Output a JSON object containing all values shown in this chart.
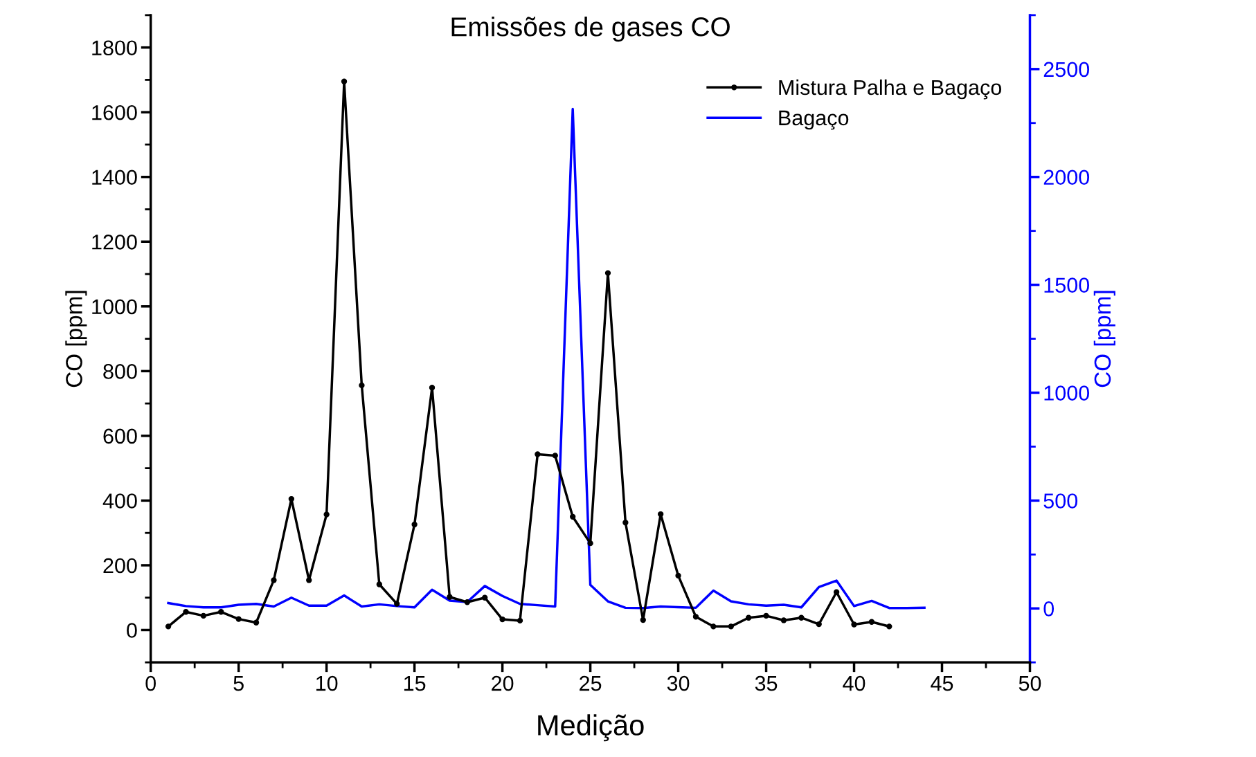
{
  "chart_data": {
    "type": "line",
    "title": "Emissões de gases CO",
    "xlabel": "Medição",
    "ylabel": "CO [ppm]",
    "y2label": "CO [ppm]",
    "x": [
      1,
      2,
      3,
      4,
      5,
      6,
      7,
      8,
      9,
      10,
      11,
      12,
      13,
      14,
      15,
      16,
      17,
      18,
      19,
      20,
      21,
      22,
      23,
      24,
      25,
      26,
      27,
      28,
      29,
      30,
      31,
      32,
      33,
      34,
      35,
      36,
      37,
      38,
      39,
      40,
      41,
      42,
      43,
      44
    ],
    "xlim": [
      0,
      50
    ],
    "xticks": [
      0,
      5,
      10,
      15,
      20,
      25,
      30,
      35,
      40,
      45,
      50
    ],
    "ylim": [
      -100,
      1900
    ],
    "yticks": [
      0,
      200,
      400,
      600,
      800,
      1000,
      1200,
      1400,
      1600,
      1800
    ],
    "y2lim": [
      -250,
      2750
    ],
    "y2ticks": [
      0,
      500,
      1000,
      1500,
      2000,
      2500
    ],
    "legend": "top right",
    "grid": false,
    "series": [
      {
        "name": "Mistura Palha e Bagaço",
        "color": "#000000",
        "marker": "circle",
        "line_style": "solid",
        "values": [
          11,
          56,
          44,
          56,
          34,
          23,
          154,
          405,
          154,
          357,
          1695,
          756,
          141,
          81,
          326,
          749,
          102,
          86,
          100,
          33,
          29,
          543,
          539,
          350,
          268,
          1103,
          332,
          31,
          358,
          168,
          41,
          11,
          11,
          38,
          44,
          30,
          38,
          18,
          117,
          17,
          25,
          11,
          null,
          null
        ]
      },
      {
        "name": "Bagaço",
        "color": "#0000ff",
        "axis": "y2",
        "marker": "none",
        "line_style": "solid",
        "values": [
          25,
          11,
          5,
          5,
          17,
          21,
          9,
          50,
          13,
          13,
          60,
          9,
          19,
          11,
          5,
          87,
          36,
          30,
          104,
          58,
          21,
          15,
          9,
          2315,
          109,
          33,
          3,
          2,
          9,
          6,
          3,
          83,
          33,
          19,
          13,
          17,
          5,
          99,
          129,
          11,
          35,
          2,
          2,
          3
        ]
      }
    ]
  }
}
